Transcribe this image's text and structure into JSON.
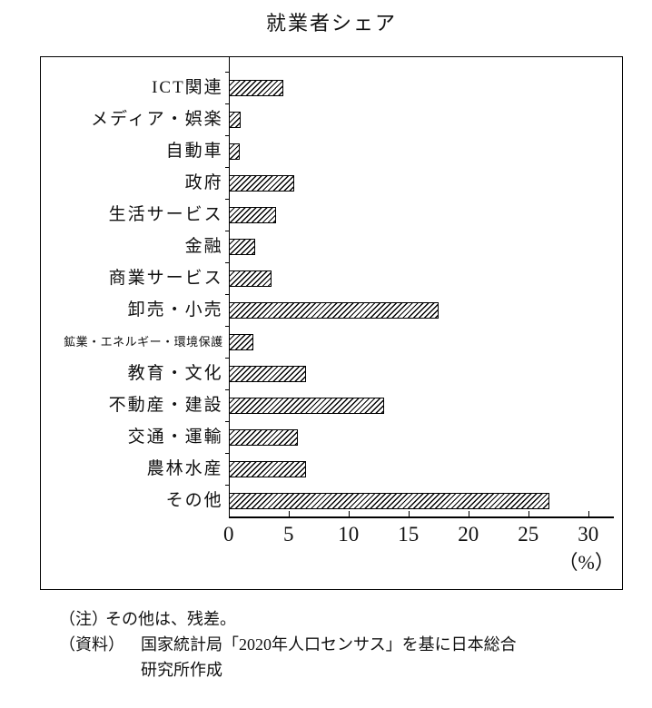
{
  "chart_data": {
    "type": "bar",
    "orientation": "horizontal",
    "title": "就業者シェア",
    "categories": [
      "ICT関連",
      "メディア・娯楽",
      "自動車",
      "政府",
      "生活サービス",
      "金融",
      "商業サービス",
      "卸売・小売",
      "鉱業・エネルギー・環境保護",
      "教育・文化",
      "不動産・建設",
      "交通・運輸",
      "農林水産",
      "その他"
    ],
    "values": [
      4.6,
      1.0,
      0.9,
      5.5,
      4.0,
      2.2,
      3.6,
      17.5,
      2.1,
      6.5,
      13.0,
      5.8,
      6.5,
      26.8
    ],
    "xlim": [
      0,
      30
    ],
    "xticks": [
      0,
      5,
      10,
      15,
      20,
      25,
      30
    ],
    "unit_label": "（%）",
    "bar_style": "diagonal-hatch",
    "grid": false,
    "legend": false
  },
  "notes": {
    "note_prefix": "（注）",
    "note_body": "その他は、残差。",
    "source_prefix": "（資料）",
    "source_body_line1": "国家統計局「2020年人口センサス」を基に日本総合",
    "source_body_line2": "研究所作成"
  }
}
